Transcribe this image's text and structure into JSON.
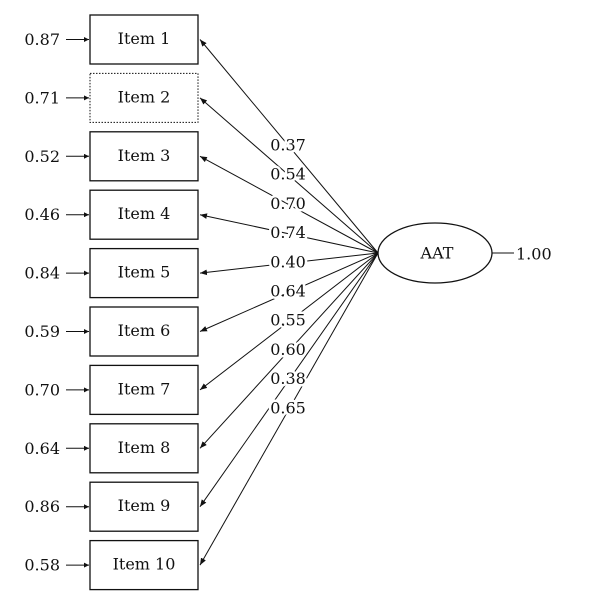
{
  "latent": {
    "label": "AAT",
    "variance": "1.00"
  },
  "items": [
    {
      "label": "Item 1",
      "error": "0.87",
      "loading": "0.37"
    },
    {
      "label": "Item 2",
      "error": "0.71",
      "loading": "0.54"
    },
    {
      "label": "Item 3",
      "error": "0.52",
      "loading": "0.70"
    },
    {
      "label": "Item 4",
      "error": "0.46",
      "loading": "0.74"
    },
    {
      "label": "Item 5",
      "error": "0.84",
      "loading": "0.40"
    },
    {
      "label": "Item 6",
      "error": "0.59",
      "loading": "0.64"
    },
    {
      "label": "Item 7",
      "error": "0.70",
      "loading": "0.55"
    },
    {
      "label": "Item 8",
      "error": "0.64",
      "loading": "0.60"
    },
    {
      "label": "Item 9",
      "error": "0.86",
      "loading": "0.38"
    },
    {
      "label": "Item 10",
      "error": "0.58",
      "loading": "0.65"
    }
  ]
}
